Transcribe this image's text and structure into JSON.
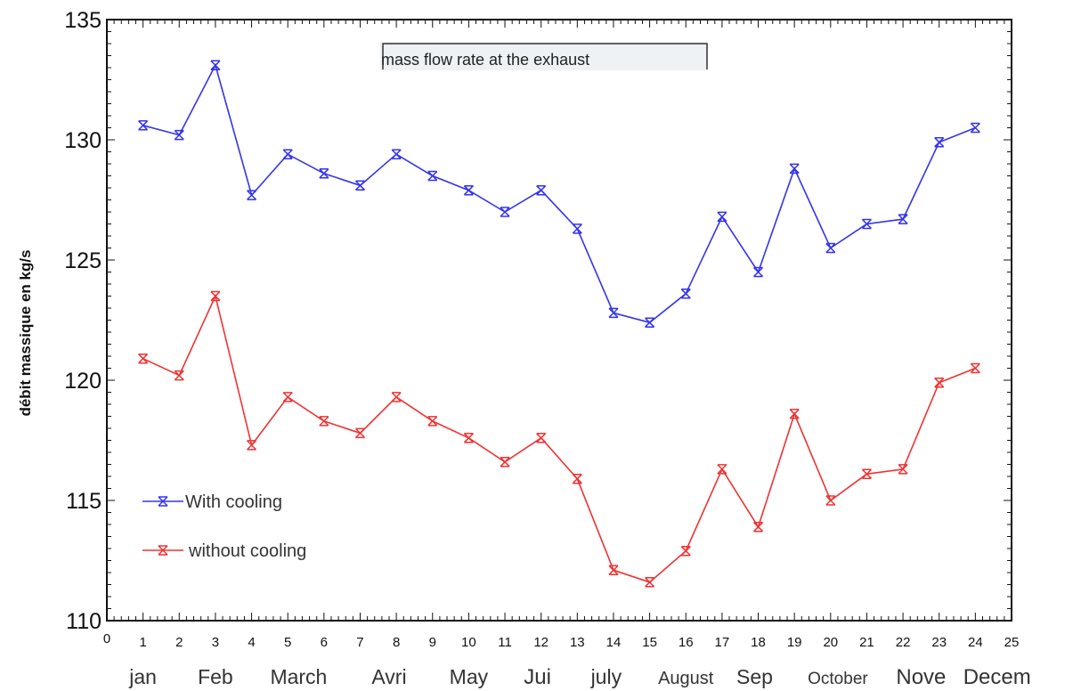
{
  "chart_data": {
    "type": "line",
    "title": "mass flow rate at the exhaust",
    "ylabel": "débit massique en kg/s",
    "xlabel": "",
    "xlim": [
      0,
      25
    ],
    "ylim": [
      110,
      135
    ],
    "x_ticks": [
      0,
      1,
      2,
      3,
      4,
      5,
      6,
      7,
      8,
      9,
      10,
      11,
      12,
      13,
      14,
      15,
      16,
      17,
      18,
      19,
      20,
      21,
      22,
      23,
      24,
      25
    ],
    "x_tick_labels": [
      "0",
      "1",
      "2",
      "3",
      "4",
      "5",
      "6",
      "7",
      "8",
      "9",
      "10",
      "11",
      "12",
      "13",
      "14",
      "15",
      "16",
      "17",
      "18",
      "19",
      "20",
      "21",
      "22",
      "23",
      "24",
      "25"
    ],
    "y_ticks": [
      110,
      115,
      120,
      125,
      130,
      135
    ],
    "y_tick_labels": [
      "110",
      "115",
      "120",
      "125",
      "130",
      "135"
    ],
    "month_labels": [
      {
        "text": "jan",
        "x": 1
      },
      {
        "text": "Feb",
        "x": 3
      },
      {
        "text": "March",
        "x": 5.3
      },
      {
        "text": "Avri",
        "x": 7.8
      },
      {
        "text": "May",
        "x": 10
      },
      {
        "text": "Jui",
        "x": 11.9
      },
      {
        "text": "july",
        "x": 13.8
      },
      {
        "text": "August",
        "x": 16
      },
      {
        "text": "Sep",
        "x": 17.9
      },
      {
        "text": "October",
        "x": 20.2
      },
      {
        "text": "Nove",
        "x": 22.5
      },
      {
        "text": "Decem",
        "x": 24.6
      }
    ],
    "legend_position": "bottom-left",
    "series": [
      {
        "name": "With cooling",
        "color": "#3333ee",
        "x": [
          1,
          2,
          3,
          4,
          5,
          6,
          7,
          8,
          9,
          10,
          11,
          12,
          13,
          14,
          15,
          16,
          17,
          18,
          19,
          20,
          21,
          22,
          23,
          24
        ],
        "values": [
          130.6,
          130.2,
          133.1,
          127.7,
          129.4,
          128.6,
          128.1,
          129.4,
          128.5,
          127.9,
          127.0,
          127.9,
          126.3,
          122.8,
          122.4,
          123.6,
          126.8,
          124.5,
          128.8,
          125.5,
          126.5,
          126.7,
          129.9,
          130.5
        ]
      },
      {
        "name": "without cooling",
        "color": "#ee3333",
        "x": [
          1,
          2,
          3,
          4,
          5,
          6,
          7,
          8,
          9,
          10,
          11,
          12,
          13,
          14,
          15,
          16,
          17,
          18,
          19,
          20,
          21,
          22,
          23,
          24
        ],
        "values": [
          120.9,
          120.2,
          123.5,
          117.3,
          119.3,
          118.3,
          117.8,
          119.3,
          118.3,
          117.6,
          116.6,
          117.6,
          115.9,
          112.1,
          111.6,
          112.9,
          116.3,
          113.9,
          118.6,
          115.0,
          116.1,
          116.3,
          119.9,
          120.5
        ]
      }
    ]
  }
}
